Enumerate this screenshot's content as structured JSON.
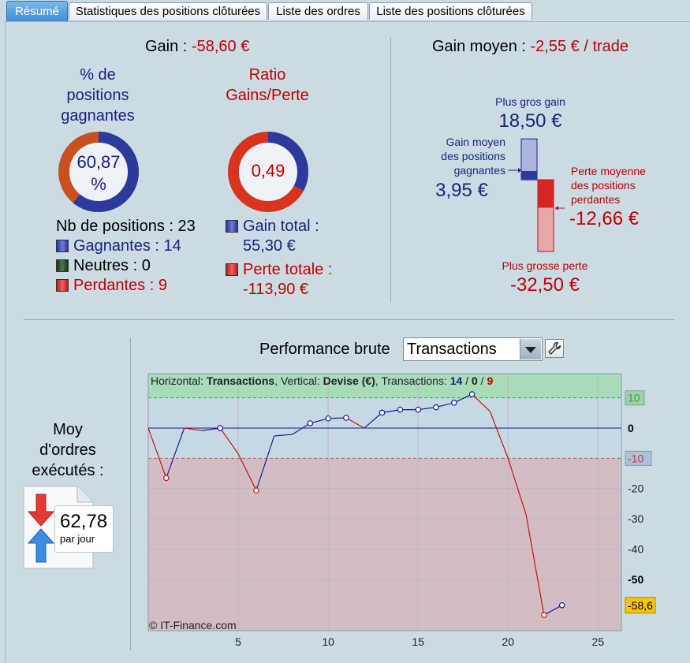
{
  "tabs": [
    {
      "label": "Résumé"
    },
    {
      "label": "Statistiques des positions clôturées"
    },
    {
      "label": "Liste des ordres"
    },
    {
      "label": "Liste des positions clôturées"
    }
  ],
  "summary": {
    "gain_label": "Gain : ",
    "gain_value": "-58,60 €",
    "avg_gain_label": "Gain moyen : ",
    "avg_gain_value": "-2,55 € / trade",
    "pct_winning_title_1": "% de",
    "pct_winning_title_2": "positions",
    "pct_winning_title_3": "gagnantes",
    "pct_winning_value_1": "60,87",
    "pct_winning_value_2": "%",
    "pct_winning_fraction": 0.6087,
    "ratio_title_1": "Ratio",
    "ratio_title_2": "Gains/Perte",
    "ratio_value": "0,49",
    "ratio_fraction": 0.327,
    "nb_positions": "Nb de positions : 23",
    "winning": "Gagnantes : 14",
    "neutral": "Neutres : 0",
    "losing": "Perdantes : 9",
    "total_gain_label": "Gain total :",
    "total_gain_value": "55,30 €",
    "total_loss_label": "Perte totale :",
    "total_loss_value": "-113,90 €"
  },
  "gain_bars": {
    "biggest_gain_label": "Plus gros gain",
    "biggest_gain_value": "18,50 €",
    "avg_win_label_1": "Gain moyen",
    "avg_win_label_2": "des positions",
    "avg_win_label_3": "gagnantes",
    "avg_win_value": "3,95 €",
    "avg_loss_label_1": "Perte moyenne",
    "avg_loss_label_2": "des positions",
    "avg_loss_label_3": "perdantes",
    "avg_loss_value": "-12,66 €",
    "biggest_loss_label": "Plus grosse perte",
    "biggest_loss_value": "-32,50 €",
    "values": {
      "max_gain": 18.5,
      "avg_gain": 3.95,
      "avg_loss": -12.66,
      "max_loss": -32.5
    }
  },
  "orders": {
    "label_1": "Moy",
    "label_2": "d'ordres",
    "label_3": "exécutés :",
    "value": "62,78",
    "unit": "par jour"
  },
  "performance": {
    "title": "Performance brute",
    "dropdown_value": "Transactions",
    "info_prefix_h": "Horizontal: ",
    "info_h": "Transactions",
    "info_prefix_v": ", Vertical: ",
    "info_v": "Devise (€)",
    "info_prefix_t": ", Transactions: ",
    "info_win": "14",
    "info_slash1": " / ",
    "info_neutral": "0",
    "info_slash2": " / ",
    "info_loss": "9",
    "copyright": "© IT-Finance.com",
    "current_value_label": "-58,6"
  },
  "chart_data": {
    "type": "line",
    "x_ticks": [
      5,
      10,
      15,
      20,
      25
    ],
    "y_ticks": [
      "10",
      "0",
      "-10",
      "-20",
      "-30",
      "-40",
      "-50"
    ],
    "xlim": [
      0,
      26.3
    ],
    "ylim": [
      -67,
      18
    ],
    "upper_threshold": 10,
    "lower_threshold": -10,
    "series": [
      {
        "x": [
          0,
          1,
          2,
          3,
          4,
          5,
          6,
          7,
          8,
          9,
          10,
          11,
          12,
          13,
          14,
          15,
          16,
          17,
          18,
          19,
          20,
          21,
          22,
          23
        ],
        "y": [
          0,
          -16.5,
          0,
          -0.8,
          0,
          -8.5,
          -20.6,
          -2.6,
          -2.1,
          1.6,
          3.2,
          3.4,
          0,
          5.1,
          6.1,
          6.1,
          6.9,
          8.4,
          11.2,
          5.5,
          -10,
          -28.6,
          -61.8,
          -58.6
        ],
        "markers": [
          1,
          4,
          6,
          9,
          10,
          11,
          13,
          14,
          15,
          16,
          17,
          18,
          22,
          23
        ]
      }
    ],
    "colors": {
      "up": "#1a1a9e",
      "down": "#c41515",
      "positive_zone": "#a8dbb8",
      "negative_zone": "#d3bdc4"
    }
  }
}
